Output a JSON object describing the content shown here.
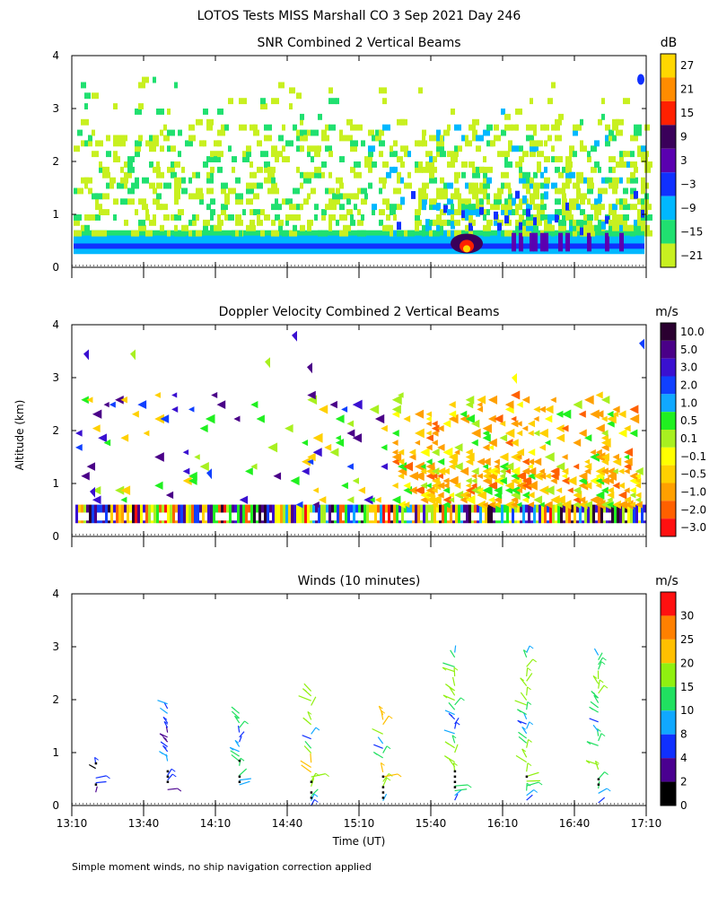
{
  "header": {
    "title": "LOTOS Tests MISS Marshall CO   3 Sep 2021 Day 246",
    "footnote": "Simple moment winds, no ship navigation correction applied"
  },
  "chart_data": [
    {
      "id": "snr",
      "type": "heatmap",
      "title": "SNR Combined 2 Vertical Beams",
      "xlabel": "",
      "ylabel": "",
      "x_range": [
        "13:10",
        "17:10"
      ],
      "ylim": [
        0,
        4
      ],
      "yticks": [
        "0",
        "1",
        "2",
        "3",
        "4"
      ],
      "colorbar": {
        "unit": "dB",
        "labels": [
          "27",
          "21",
          "15",
          "9",
          "3",
          "−3",
          "−9",
          "−15",
          "−21"
        ],
        "colors": [
          "#ffd700",
          "#ff8c00",
          "#ff2000",
          "#3a005a",
          "#5a00b0",
          "#1030ff",
          "#00b8ff",
          "#20e070",
          "#c8f020"
        ]
      },
      "regions": [
        {
          "description": "strong return band near 0.25-0.6 km",
          "alt_km": [
            0.25,
            0.6
          ],
          "snr_db": [
            -9,
            3
          ]
        },
        {
          "description": "patchy echoes 0.6-3 km",
          "alt_km": [
            0.6,
            3.0
          ],
          "snr_db": [
            -21,
            -9
          ]
        },
        {
          "description": "strong feature ~15:55",
          "time": "15:55",
          "alt_km": [
            0.3,
            0.6
          ],
          "snr_db": [
            15,
            27
          ]
        }
      ]
    },
    {
      "id": "doppler",
      "type": "heatmap",
      "title": "Doppler Velocity Combined 2 Vertical Beams",
      "xlabel": "",
      "ylabel": "Altitude (km)",
      "x_range": [
        "13:10",
        "17:10"
      ],
      "ylim": [
        0,
        4
      ],
      "yticks": [
        "0",
        "1",
        "2",
        "3",
        "4"
      ],
      "colorbar": {
        "unit": "m/s",
        "labels": [
          "10.0",
          "5.0",
          "3.0",
          "2.0",
          "1.0",
          "0.5",
          "0.1",
          "−0.1",
          "−0.5",
          "−1.0",
          "−2.0",
          "−3.0"
        ],
        "colors": [
          "#2a0030",
          "#4a0088",
          "#3a10d0",
          "#1040ff",
          "#10a8ff",
          "#20f020",
          "#a8f020",
          "#ffff00",
          "#ffd000",
          "#ffa000",
          "#ff6000",
          "#ff1010"
        ]
      }
    },
    {
      "id": "winds",
      "type": "scatter",
      "title": "Winds (10 minutes)",
      "xlabel": "Time (UT)",
      "ylabel": "",
      "xticks": [
        "13:10",
        "13:40",
        "14:10",
        "14:40",
        "15:10",
        "15:40",
        "16:10",
        "16:40",
        "17:10"
      ],
      "x_range": [
        "13:10",
        "17:10"
      ],
      "ylim": [
        0,
        4
      ],
      "yticks": [
        "0",
        "1",
        "2",
        "3",
        "4"
      ],
      "colorbar": {
        "unit": "m/s",
        "labels": [
          "30",
          "25",
          "20",
          "15",
          "10",
          "8",
          "4",
          "2",
          "0"
        ],
        "colors": [
          "#ff1010",
          "#ff8000",
          "#ffc000",
          "#90f010",
          "#20e060",
          "#10a8ff",
          "#1030ff",
          "#4a0090",
          "#000000"
        ]
      },
      "profiles": [
        {
          "time": "13:20",
          "alt_min_km": 0.25,
          "alt_max_km": 0.8,
          "speed_max": 8
        },
        {
          "time": "13:50",
          "alt_min_km": 0.3,
          "alt_max_km": 1.95,
          "speed_max": 10
        },
        {
          "time": "14:20",
          "alt_min_km": 0.3,
          "alt_max_km": 1.75,
          "speed_max": 15
        },
        {
          "time": "14:50",
          "alt_min_km": 0.0,
          "alt_max_km": 2.15,
          "speed_max": 22
        },
        {
          "time": "15:20",
          "alt_min_km": 0.0,
          "alt_max_km": 1.7,
          "speed_max": 22
        },
        {
          "time": "15:50",
          "alt_min_km": 0.1,
          "alt_max_km": 2.9,
          "speed_max": 20
        },
        {
          "time": "16:20",
          "alt_min_km": 0.1,
          "alt_max_km": 2.85,
          "speed_max": 20
        },
        {
          "time": "16:50",
          "alt_min_km": 0.05,
          "alt_max_km": 2.85,
          "speed_max": 18
        }
      ]
    }
  ]
}
